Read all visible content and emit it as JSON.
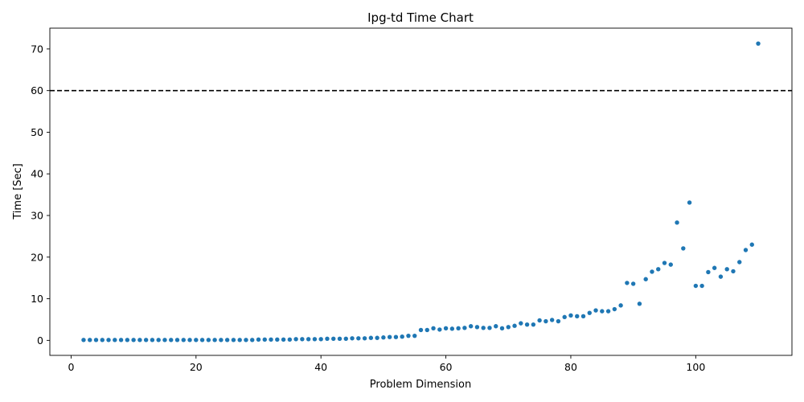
{
  "chart_data": {
    "type": "scatter",
    "title": "Ipg-td Time Chart",
    "xlabel": "Problem Dimension",
    "ylabel": "Time [Sec]",
    "xlim": [
      -3.4,
      115.4
    ],
    "ylim": [
      -3.6,
      75.0
    ],
    "xticks": [
      0,
      20,
      40,
      60,
      80,
      100
    ],
    "yticks": [
      0,
      10,
      20,
      30,
      40,
      50,
      60,
      70
    ],
    "grid": false,
    "legend": "none",
    "color": "#1f77b4",
    "reference_line": {
      "y": 60,
      "style": "dashed",
      "color": "#000000"
    },
    "series": [
      {
        "x": [
          2,
          3,
          4,
          5,
          6,
          7,
          8,
          9,
          10,
          11,
          12,
          13,
          14,
          15,
          16,
          17,
          18,
          19,
          20,
          21,
          22,
          23,
          24,
          25,
          26,
          27,
          28,
          29,
          30,
          31,
          32,
          33,
          34,
          35,
          36,
          37,
          38,
          39,
          40,
          41,
          42,
          43,
          44,
          45,
          46,
          47,
          48,
          49,
          50,
          51,
          52,
          53,
          54,
          55,
          56,
          57,
          58,
          59,
          60,
          61,
          62,
          63,
          64,
          65,
          66,
          67,
          68,
          69,
          70,
          71,
          72,
          73,
          74,
          75,
          76,
          77,
          78,
          79,
          80,
          81,
          82,
          83,
          84,
          85,
          86,
          87,
          88,
          89,
          90,
          91,
          92,
          93,
          94,
          95,
          96,
          97,
          98,
          99,
          100,
          101,
          102,
          103,
          104,
          105,
          106,
          107,
          108,
          109,
          110
        ],
        "y": [
          0.1,
          0.1,
          0.1,
          0.1,
          0.1,
          0.1,
          0.1,
          0.1,
          0.1,
          0.1,
          0.1,
          0.1,
          0.1,
          0.1,
          0.1,
          0.1,
          0.1,
          0.1,
          0.1,
          0.1,
          0.1,
          0.1,
          0.1,
          0.1,
          0.1,
          0.1,
          0.1,
          0.1,
          0.2,
          0.2,
          0.2,
          0.2,
          0.2,
          0.2,
          0.3,
          0.3,
          0.3,
          0.3,
          0.3,
          0.4,
          0.4,
          0.4,
          0.4,
          0.5,
          0.5,
          0.5,
          0.6,
          0.6,
          0.7,
          0.8,
          0.8,
          0.9,
          1.1,
          1.1,
          2.5,
          2.5,
          2.9,
          2.6,
          2.9,
          2.8,
          2.9,
          3.0,
          3.4,
          3.2,
          3.0,
          3.0,
          3.4,
          2.9,
          3.2,
          3.5,
          4.1,
          3.8,
          3.8,
          4.8,
          4.6,
          4.9,
          4.6,
          5.6,
          6.0,
          5.8,
          5.8,
          6.6,
          7.2,
          7.0,
          7.0,
          7.5,
          8.4,
          13.8,
          13.6,
          8.8,
          14.7,
          16.5,
          17.1,
          18.6,
          18.2,
          28.3,
          22.1,
          33.1,
          13.1,
          13.1,
          16.4,
          17.4,
          15.3,
          17.1,
          16.6,
          18.8,
          21.7,
          23.0,
          71.3
        ]
      }
    ]
  }
}
